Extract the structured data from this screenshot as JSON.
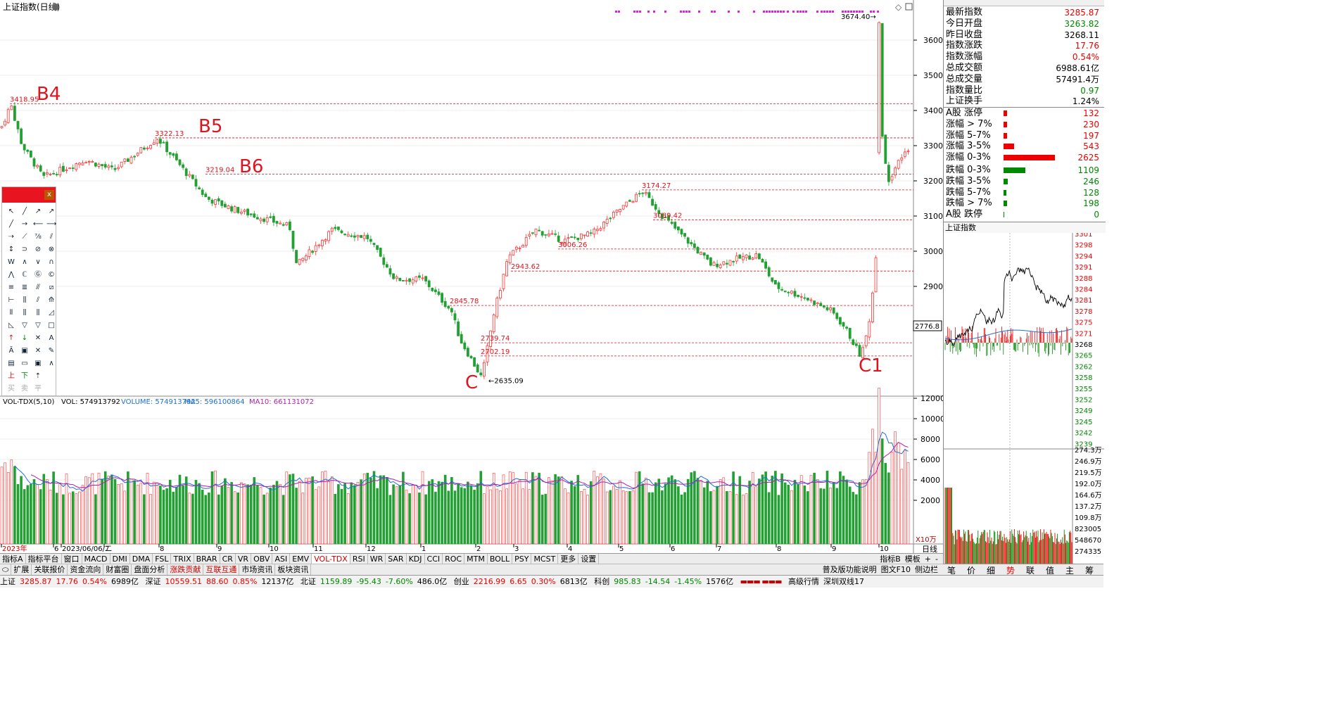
{
  "chart_title": "上证指数(日线)",
  "main": {
    "yticks": [
      "3600",
      "3500",
      "3400",
      "3300",
      "3200",
      "3100",
      "3000",
      "2900"
    ],
    "last_price_label": "2776.8",
    "annotations": {
      "b4": "B4",
      "b5": "B5",
      "b6": "B6",
      "c": "C",
      "c1": "C1"
    },
    "price_labels": [
      "3418.95",
      "3322.13",
      "3219.04",
      "3174.27",
      "3089.42",
      "3006.26",
      "2943.62",
      "2845.78",
      "2739.74",
      "2702.19",
      "2635.09",
      "3674.40"
    ]
  },
  "volume": {
    "header": "VOL-TDX(5,10)",
    "vol_label": "VOL: 574913792",
    "volume_label": "VOLUME: 574913792",
    "ma5_label": "MA5: 596100864",
    "ma10_label": "MA10: 661131072",
    "yticks": [
      "12000",
      "10000",
      "8000",
      "6000",
      "4000",
      "2000"
    ],
    "unit": "X10万"
  },
  "xaxis": {
    "labels": [
      "2023年",
      "6",
      "2023/06/06/二",
      "7",
      "8",
      "9",
      "10",
      "11",
      "12",
      "1",
      "2",
      "3",
      "4",
      "5",
      "6",
      "7",
      "8",
      "9",
      "10"
    ],
    "period": "日线"
  },
  "tabs_row1": [
    "指标A",
    "指标平台",
    "窗口",
    "MACD",
    "DMI",
    "DMA",
    "FSL",
    "TRIX",
    "BRAR",
    "CR",
    "VR",
    "OBV",
    "ASI",
    "EMV",
    "VOL-TDX",
    "RSI",
    "WR",
    "SAR",
    "KDJ",
    "CCI",
    "ROC",
    "MTM",
    "BOLL",
    "PSY",
    "MCST",
    "更多",
    "设置"
  ],
  "tabs_row1_right": [
    "指标B",
    "模板",
    "+",
    "-"
  ],
  "tabs_row2": [
    "扩展",
    "关联报价",
    "资金流向",
    "财富圈",
    "盘面分析",
    "涨跌贡献",
    "互联互通",
    "市场资讯",
    "板块资讯"
  ],
  "tabs_row2_right": [
    "普及版功能说明",
    "图文F10",
    "侧边栏"
  ],
  "quote": {
    "title": "上证指数",
    "rows": [
      {
        "k": "最新指数",
        "v": "3285.87",
        "c": "red"
      },
      {
        "k": "今日开盘",
        "v": "3263.82",
        "c": "green"
      },
      {
        "k": "昨日收盘",
        "v": "3268.11",
        "c": "black"
      },
      {
        "k": "指数涨跌",
        "v": "17.76",
        "c": "red"
      },
      {
        "k": "指数涨幅",
        "v": "0.54%",
        "c": "red"
      },
      {
        "k": "总成交额",
        "v": "6988.61亿",
        "c": "black"
      },
      {
        "k": "总成交量",
        "v": "57491.4万",
        "c": "black"
      },
      {
        "k": "指数量比",
        "v": "0.97",
        "c": "green"
      },
      {
        "k": "上证换手",
        "v": "1.24%",
        "c": "black"
      }
    ],
    "breadth": [
      {
        "k": "A股 涨停",
        "v": "132",
        "c": "red",
        "w": 0.06
      },
      {
        "k": "涨幅 > 7%",
        "v": "230",
        "c": "red",
        "w": 0.06
      },
      {
        "k": "涨幅 5-7%",
        "v": "197",
        "c": "red",
        "w": 0.06
      },
      {
        "k": "涨幅 3-5%",
        "v": "543",
        "c": "red",
        "w": 0.19
      },
      {
        "k": "涨幅 0-3%",
        "v": "2625",
        "c": "red",
        "w": 0.91
      },
      {
        "k": "跌幅 0-3%",
        "v": "1109",
        "c": "green",
        "w": 0.39
      },
      {
        "k": "跌幅 3-5%",
        "v": "246",
        "c": "green",
        "w": 0.07
      },
      {
        "k": "跌幅 5-7%",
        "v": "128",
        "c": "green",
        "w": 0.05
      },
      {
        "k": "跌幅 > 7%",
        "v": "198",
        "c": "green",
        "w": 0.06
      },
      {
        "k": "A股 跌停",
        "v": "0",
        "c": "green",
        "w": 0.01
      }
    ]
  },
  "intraday": {
    "title": "上证指数",
    "yticks": [
      "3301",
      "3298",
      "3294",
      "3291",
      "3288",
      "3284",
      "3281",
      "3278",
      "3275",
      "3271",
      "3268",
      "3265",
      "3262",
      "3258",
      "3255",
      "3252",
      "3249",
      "3245",
      "3242",
      "3239"
    ],
    "vol_ticks": [
      "274.3万",
      "246.9万",
      "219.5万",
      "192.0万",
      "164.6万",
      "137.2万",
      "109.8万",
      "823005",
      "548670",
      "274335"
    ]
  },
  "bottom_tabs": [
    "笔",
    "价",
    "细",
    "势",
    "联",
    "值",
    "主",
    "筹"
  ],
  "active_bottom_tab": "势",
  "status": {
    "sh_label": "上证",
    "sh_val": "3285.87",
    "sh_chg": "17.76",
    "sh_pct": "0.54%",
    "sh_amt": "6989亿",
    "sz_label": "深证",
    "sz_val": "10559.51",
    "sz_chg": "88.60",
    "sz_pct": "0.85%",
    "sz_amt": "12137亿",
    "nb_label": "北证",
    "nb_val": "1159.89",
    "nb_chg": "-95.43",
    "nb_pct": "-7.60%",
    "nb_amt": "486.0亿",
    "cy_label": "创业",
    "cy_val": "2216.99",
    "cy_chg": "6.65",
    "cy_pct": "0.30%",
    "cy_amt": "6813亿",
    "kc_label": "科创",
    "kc_val": "985.83",
    "kc_chg": "-14.54",
    "kc_pct": "-1.45%",
    "kc_amt": "1576亿",
    "right1": "高级行情",
    "right2": "深圳双线17"
  },
  "colors": {
    "up": "#ff3333",
    "down": "#22a033",
    "ma5": "#1e6fd9",
    "ma10": "#b01eb0",
    "dash": "#e0141e",
    "accent": "#e8141f"
  }
}
